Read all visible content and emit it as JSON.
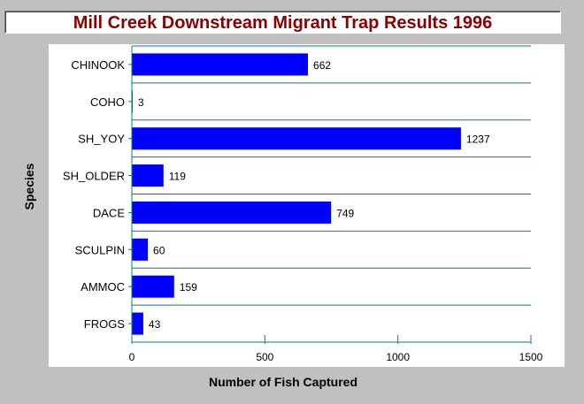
{
  "chart_data": {
    "type": "bar",
    "orientation": "horizontal",
    "title": "Mill Creek Downstream Migrant Trap Results 1996",
    "xlabel": "Number of Fish Captured",
    "ylabel": "Species",
    "categories": [
      "CHINOOK",
      "COHO",
      "SH_YOY",
      "SH_OLDER",
      "DACE",
      "SCULPIN",
      "AMMOC",
      "FROGS"
    ],
    "values": [
      662,
      3,
      1237,
      119,
      749,
      60,
      159,
      43
    ],
    "xlim": [
      0,
      1500
    ],
    "xticks": [
      0,
      500,
      1000,
      1500
    ],
    "grid": "horizontal",
    "legend": "none",
    "colors": {
      "bar": "#0000ff",
      "plot_background": "#ffffff",
      "gridline": "#008080",
      "axis": "#008080",
      "title": "#8b0000",
      "frame": "#c0c0c0"
    }
  }
}
